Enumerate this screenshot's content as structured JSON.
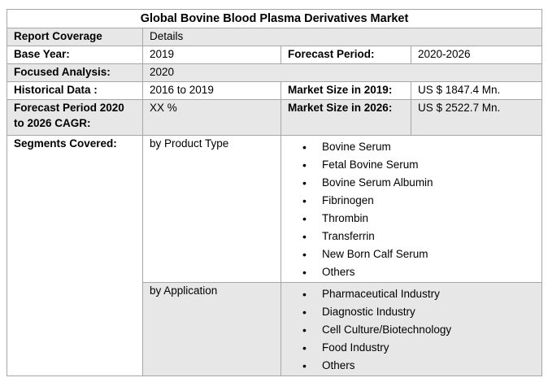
{
  "table": {
    "title": "Global Bovine Blood Plasma Derivatives Market",
    "report_coverage": {
      "label": "Report Coverage",
      "value": "Details"
    },
    "base_year": {
      "label": "Base Year:",
      "value": "2019"
    },
    "forecast_period": {
      "label": "Forecast Period:",
      "value": "2020-2026"
    },
    "focused_analysis": {
      "label": "Focused Analysis:",
      "value": "2020"
    },
    "historical_data": {
      "label": "Historical Data :",
      "value": "2016 to 2019"
    },
    "market_size_2019": {
      "label": "Market Size in 2019:",
      "value": "US $ 1847.4 Mn."
    },
    "forecast_cagr": {
      "label": "Forecast Period 2020 to 2026 CAGR:",
      "value": "XX %"
    },
    "market_size_2026": {
      "label": "Market Size in 2026:",
      "value": "US $ 2522.7 Mn."
    },
    "segments_covered_label": "Segments Covered:",
    "by_product_type": {
      "label": "by Product Type",
      "items": [
        "Bovine Serum",
        "Fetal Bovine Serum",
        "Bovine Serum Albumin",
        "Fibrinogen",
        "Thrombin",
        "Transferrin",
        "New Born Calf Serum",
        "Others"
      ]
    },
    "by_application": {
      "label": "by Application",
      "items": [
        "Pharmaceutical Industry",
        "Diagnostic Industry",
        "Cell Culture/Biotechnology",
        "Food Industry",
        "Others"
      ]
    },
    "colors": {
      "row_shade": "#e8e7e7",
      "border": "#a6a6a6",
      "text": "#000000"
    }
  }
}
